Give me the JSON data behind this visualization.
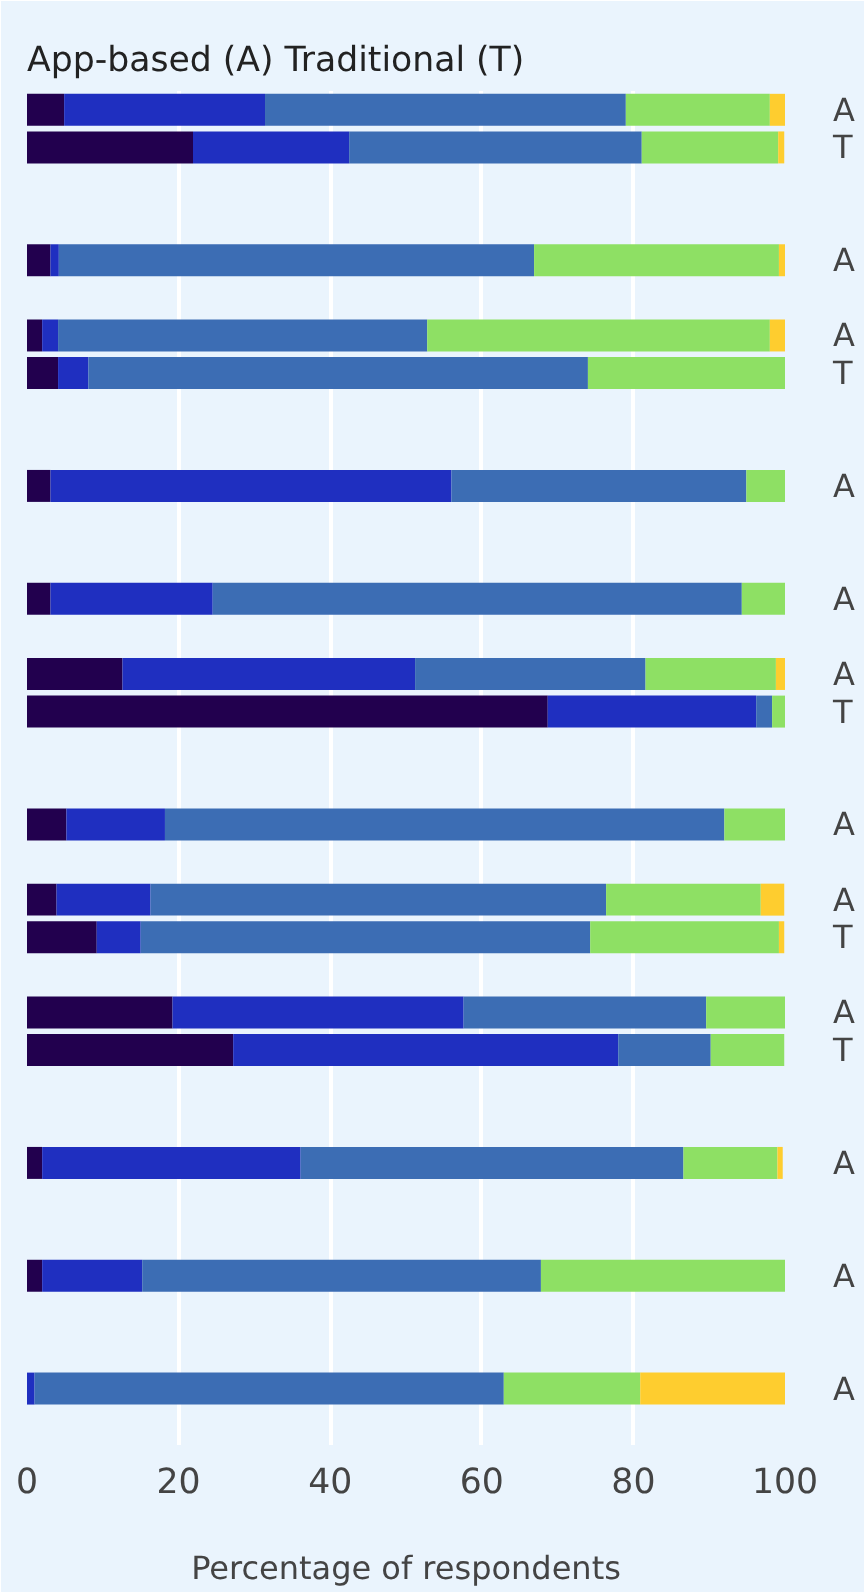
{
  "chart_data": {
    "type": "bar",
    "orientation": "horizontal",
    "stacked": true,
    "title": "App-based (A) Traditional (T)",
    "xlabel": "Percentage of respondents",
    "categories": [
      "A",
      "T",
      null,
      null,
      "A",
      null,
      "A",
      "T",
      null,
      null,
      "A",
      null,
      null,
      "A",
      null,
      "A",
      "T",
      null,
      null,
      "A",
      null,
      "A",
      "T",
      null,
      "A",
      "T",
      null,
      null,
      "A",
      null,
      null,
      "A",
      null,
      null,
      "A",
      null
    ],
    "series": [
      {
        "color": "#22004e",
        "values": [
          4.9,
          21.9,
          null,
          null,
          3.1,
          null,
          2.0,
          4.1,
          null,
          null,
          3.1,
          null,
          null,
          3.1,
          null,
          12.6,
          68.7,
          null,
          null,
          5.2,
          null,
          3.9,
          9.2,
          null,
          19.2,
          27.2,
          null,
          null,
          2.0,
          null,
          null,
          2.0,
          null,
          null,
          null,
          null
        ]
      },
      {
        "color": "#1f2fc0",
        "values": [
          26.5,
          20.6,
          null,
          null,
          1.1,
          null,
          2.1,
          4.0,
          null,
          null,
          52.9,
          null,
          null,
          21.4,
          null,
          38.6,
          27.5,
          null,
          null,
          13.0,
          null,
          12.4,
          5.8,
          null,
          38.4,
          50.8,
          null,
          null,
          34.1,
          null,
          null,
          13.2,
          null,
          null,
          1.0,
          null
        ]
      },
      {
        "color": "#3c6db4",
        "values": [
          47.6,
          38.6,
          null,
          null,
          62.7,
          null,
          48.7,
          65.9,
          null,
          null,
          38.9,
          null,
          null,
          69.8,
          null,
          30.4,
          2.1,
          null,
          null,
          73.8,
          null,
          60.1,
          59.3,
          null,
          32.0,
          12.2,
          null,
          null,
          50.5,
          null,
          null,
          52.6,
          null,
          null,
          61.9,
          null
        ]
      },
      {
        "color": "#8ee064",
        "values": [
          19.0,
          18.0,
          null,
          null,
          32.3,
          null,
          45.2,
          26.1,
          null,
          null,
          5.2,
          null,
          null,
          5.7,
          null,
          17.2,
          1.8,
          null,
          null,
          8.1,
          null,
          20.4,
          24.9,
          null,
          10.5,
          9.7,
          null,
          null,
          12.4,
          null,
          null,
          32.2,
          null,
          null,
          18.0,
          null
        ]
      },
      {
        "color": "#fecd2f",
        "values": [
          2.0,
          0.8,
          null,
          null,
          0.8,
          null,
          2.0,
          null,
          null,
          null,
          null,
          null,
          null,
          null,
          null,
          1.2,
          null,
          null,
          null,
          null,
          null,
          3.1,
          0.7,
          null,
          null,
          null,
          null,
          null,
          0.7,
          null,
          null,
          null,
          null,
          null,
          19.2,
          null
        ]
      }
    ],
    "xlim": [
      0,
      100
    ],
    "xticks": [
      0,
      20,
      40,
      60,
      80,
      100
    ],
    "grid": "x"
  }
}
